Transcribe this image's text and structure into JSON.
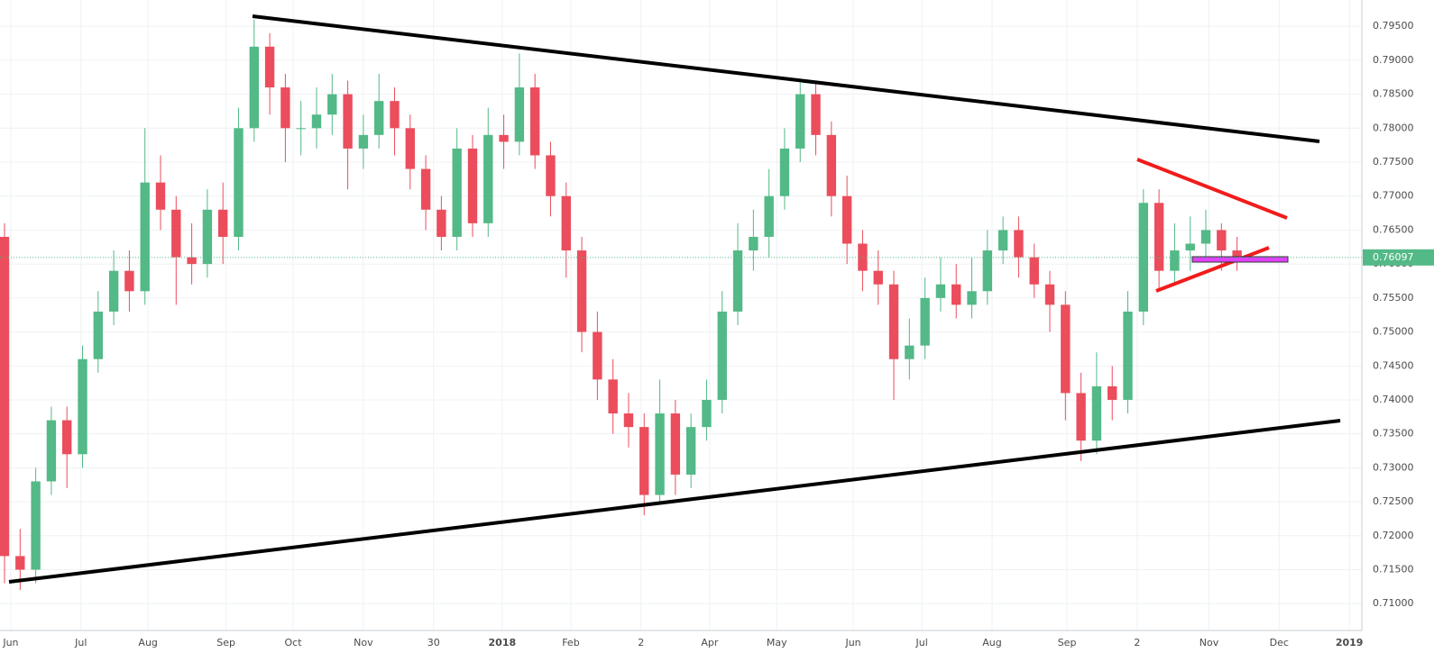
{
  "chart_data": {
    "type": "candlestick",
    "up_color": "#53b987",
    "down_color": "#eb4d5c",
    "open": [
      0.764,
      0.717,
      0.715,
      0.728,
      0.737,
      0.732,
      0.746,
      0.753,
      0.759,
      0.756,
      0.772,
      0.768,
      0.761,
      0.76,
      0.768,
      0.764,
      0.78,
      0.792,
      0.786,
      0.78,
      0.78,
      0.782,
      0.785,
      0.777,
      0.779,
      0.784,
      0.78,
      0.774,
      0.768,
      0.764,
      0.777,
      0.766,
      0.779,
      0.778,
      0.786,
      0.776,
      0.77,
      0.762,
      0.75,
      0.743,
      0.738,
      0.736,
      0.726,
      0.738,
      0.729,
      0.736,
      0.74,
      0.753,
      0.762,
      0.764,
      0.77,
      0.777,
      0.785,
      0.779,
      0.77,
      0.763,
      0.759,
      0.757,
      0.746,
      0.748,
      0.755,
      0.757,
      0.754,
      0.756,
      0.762,
      0.765,
      0.761,
      0.757,
      0.754,
      0.741,
      0.734,
      0.742,
      0.74,
      0.753,
      0.769,
      0.759,
      0.762,
      0.763,
      0.765,
      0.762
    ],
    "high": [
      0.766,
      0.721,
      0.73,
      0.739,
      0.739,
      0.748,
      0.756,
      0.762,
      0.762,
      0.78,
      0.776,
      0.77,
      0.766,
      0.771,
      0.772,
      0.783,
      0.796,
      0.794,
      0.788,
      0.784,
      0.786,
      0.788,
      0.787,
      0.782,
      0.788,
      0.786,
      0.782,
      0.776,
      0.77,
      0.78,
      0.779,
      0.783,
      0.782,
      0.791,
      0.788,
      0.778,
      0.772,
      0.764,
      0.753,
      0.746,
      0.741,
      0.738,
      0.743,
      0.74,
      0.738,
      0.743,
      0.756,
      0.766,
      0.768,
      0.774,
      0.78,
      0.787,
      0.787,
      0.781,
      0.773,
      0.765,
      0.762,
      0.759,
      0.752,
      0.758,
      0.761,
      0.76,
      0.761,
      0.765,
      0.767,
      0.767,
      0.763,
      0.759,
      0.756,
      0.744,
      0.747,
      0.745,
      0.756,
      0.771,
      0.771,
      0.766,
      0.767,
      0.768,
      0.766,
      0.764
    ],
    "low": [
      0.713,
      0.712,
      0.713,
      0.726,
      0.727,
      0.73,
      0.744,
      0.751,
      0.753,
      0.754,
      0.765,
      0.754,
      0.757,
      0.758,
      0.76,
      0.762,
      0.778,
      0.782,
      0.775,
      0.776,
      0.777,
      0.779,
      0.771,
      0.774,
      0.777,
      0.776,
      0.771,
      0.765,
      0.762,
      0.762,
      0.764,
      0.764,
      0.774,
      0.776,
      0.774,
      0.767,
      0.758,
      0.747,
      0.74,
      0.735,
      0.733,
      0.723,
      0.725,
      0.726,
      0.727,
      0.734,
      0.738,
      0.751,
      0.759,
      0.761,
      0.768,
      0.775,
      0.776,
      0.767,
      0.76,
      0.756,
      0.754,
      0.74,
      0.743,
      0.746,
      0.753,
      0.752,
      0.752,
      0.754,
      0.76,
      0.758,
      0.755,
      0.75,
      0.737,
      0.731,
      0.732,
      0.737,
      0.738,
      0.751,
      0.756,
      0.757,
      0.759,
      0.761,
      0.759,
      0.759
    ],
    "close": [
      0.717,
      0.715,
      0.728,
      0.737,
      0.732,
      0.746,
      0.753,
      0.759,
      0.756,
      0.772,
      0.768,
      0.761,
      0.76,
      0.768,
      0.764,
      0.78,
      0.792,
      0.786,
      0.78,
      0.78,
      0.782,
      0.785,
      0.777,
      0.779,
      0.784,
      0.78,
      0.774,
      0.768,
      0.764,
      0.777,
      0.766,
      0.779,
      0.778,
      0.786,
      0.776,
      0.77,
      0.762,
      0.75,
      0.743,
      0.738,
      0.736,
      0.726,
      0.738,
      0.729,
      0.736,
      0.74,
      0.753,
      0.762,
      0.764,
      0.77,
      0.777,
      0.785,
      0.779,
      0.77,
      0.763,
      0.759,
      0.757,
      0.746,
      0.748,
      0.755,
      0.757,
      0.754,
      0.756,
      0.762,
      0.765,
      0.761,
      0.757,
      0.754,
      0.741,
      0.734,
      0.742,
      0.74,
      0.753,
      0.769,
      0.759,
      0.762,
      0.763,
      0.765,
      0.762,
      0.761
    ],
    "last_price": 0.76097,
    "last_price_color": "#53b987",
    "xlim": [
      -0.29,
      87.0
    ],
    "xticks": [
      {
        "value": 0.4,
        "label": "Jun"
      },
      {
        "value": 4.9,
        "label": "Jul"
      },
      {
        "value": 9.2,
        "label": "Aug"
      },
      {
        "value": 14.2,
        "label": "Sep"
      },
      {
        "value": 18.5,
        "label": "Oct"
      },
      {
        "value": 23.0,
        "label": "Nov"
      },
      {
        "value": 27.5,
        "label": "30"
      },
      {
        "value": 31.9,
        "label": "2018"
      },
      {
        "value": 36.3,
        "label": "Feb"
      },
      {
        "value": 40.8,
        "label": "2"
      },
      {
        "value": 45.2,
        "label": "Apr"
      },
      {
        "value": 49.5,
        "label": "May"
      },
      {
        "value": 54.4,
        "label": "Jun"
      },
      {
        "value": 58.8,
        "label": "Jul"
      },
      {
        "value": 63.3,
        "label": "Aug"
      },
      {
        "value": 68.1,
        "label": "Sep"
      },
      {
        "value": 72.6,
        "label": "2"
      },
      {
        "value": 77.2,
        "label": "Nov"
      },
      {
        "value": 81.7,
        "label": "Dec"
      },
      {
        "value": 86.2,
        "label": "2019"
      }
    ],
    "ylim": [
      0.70605,
      0.79887
    ],
    "yticks": [
      {
        "value": 0.71,
        "label": "0.71000"
      },
      {
        "value": 0.715,
        "label": "0.71500"
      },
      {
        "value": 0.72,
        "label": "0.72000"
      },
      {
        "value": 0.725,
        "label": "0.72500"
      },
      {
        "value": 0.73,
        "label": "0.73000"
      },
      {
        "value": 0.735,
        "label": "0.73500"
      },
      {
        "value": 0.74,
        "label": "0.74000"
      },
      {
        "value": 0.745,
        "label": "0.74500"
      },
      {
        "value": 0.75,
        "label": "0.75000"
      },
      {
        "value": 0.755,
        "label": "0.75500"
      },
      {
        "value": 0.76,
        "label": "0.76000"
      },
      {
        "value": 0.765,
        "label": "0.76500"
      },
      {
        "value": 0.77,
        "label": "0.77000"
      },
      {
        "value": 0.775,
        "label": "0.77500"
      },
      {
        "value": 0.78,
        "label": "0.78000"
      },
      {
        "value": 0.785,
        "label": "0.78500"
      },
      {
        "value": 0.79,
        "label": "0.79000"
      },
      {
        "value": 0.795,
        "label": "0.79500"
      }
    ],
    "grid": true
  }
}
